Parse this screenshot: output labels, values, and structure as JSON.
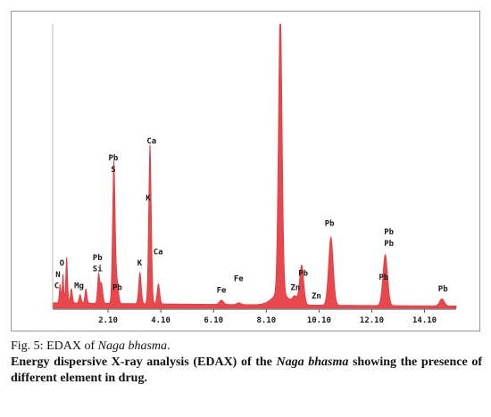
{
  "caption": {
    "fig_label": "Fig. 5: EDAX of ",
    "fig_italic": "Naga bhasma",
    "fig_end": ".",
    "desc_before": "Energy dispersive X-ray analysis (EDAX) of the ",
    "desc_italic": "Naga bhasma",
    "desc_after": " showing the presence of different element in drug."
  },
  "chart_data": {
    "type": "line",
    "title": "",
    "xlabel": "",
    "ylabel": "",
    "xlim": [
      0,
      15.3
    ],
    "ylim": [
      0,
      100
    ],
    "x_ticks": [
      2.1,
      4.1,
      6.1,
      8.1,
      10.1,
      12.1,
      14.1
    ],
    "x_tick_labels": [
      "2.10",
      "4.10",
      "6.10",
      "8.10",
      "10.10",
      "12.10",
      "14.10"
    ],
    "series_color": "#e8474c",
    "baseline": 2,
    "peaks": [
      {
        "x": 0.28,
        "y": 6.5,
        "w": 0.03
      },
      {
        "x": 0.39,
        "y": 10,
        "w": 0.03
      },
      {
        "x": 0.53,
        "y": 16,
        "w": 0.035
      },
      {
        "x": 0.71,
        "y": 5,
        "w": 0.04
      },
      {
        "x": 1.04,
        "y": 3,
        "w": 0.04
      },
      {
        "x": 1.26,
        "y": 5,
        "w": 0.04
      },
      {
        "x": 1.74,
        "y": 10,
        "w": 0.04
      },
      {
        "x": 1.85,
        "y": 7,
        "w": 0.05
      },
      {
        "x": 2.32,
        "y": 50,
        "w": 0.05
      },
      {
        "x": 2.45,
        "y": 7,
        "w": 0.05
      },
      {
        "x": 3.31,
        "y": 11,
        "w": 0.05
      },
      {
        "x": 3.69,
        "y": 56,
        "w": 0.05
      },
      {
        "x": 4.01,
        "y": 7,
        "w": 0.05
      },
      {
        "x": 6.4,
        "y": 1.5,
        "w": 0.08
      },
      {
        "x": 7.06,
        "y": 0.6,
        "w": 0.08
      },
      {
        "x": 8.63,
        "y": 100,
        "w": 0.07
      },
      {
        "x": 8.63,
        "y": 4,
        "w": 0.3
      },
      {
        "x": 9.18,
        "y": 2.5,
        "w": 0.08
      },
      {
        "x": 9.44,
        "y": 14,
        "w": 0.08
      },
      {
        "x": 10.55,
        "y": 24,
        "w": 0.09
      },
      {
        "x": 12.61,
        "y": 18,
        "w": 0.09
      },
      {
        "x": 14.76,
        "y": 2.5,
        "w": 0.09
      }
    ],
    "peak_labels": [
      {
        "text": "C",
        "x": 0.15,
        "y": 7
      },
      {
        "text": "N",
        "x": 0.2,
        "y": 11
      },
      {
        "text": "O",
        "x": 0.35,
        "y": 15
      },
      {
        "text": "Mg",
        "x": 1.0,
        "y": 7
      },
      {
        "text": "Pb",
        "x": 1.7,
        "y": 17
      },
      {
        "text": "Si",
        "x": 1.7,
        "y": 13
      },
      {
        "text": "Pb",
        "x": 2.45,
        "y": 6.5
      },
      {
        "text": "Pb",
        "x": 2.3,
        "y": 52
      },
      {
        "text": "S",
        "x": 2.3,
        "y": 48
      },
      {
        "text": "K",
        "x": 3.3,
        "y": 15
      },
      {
        "text": "K",
        "x": 3.62,
        "y": 38
      },
      {
        "text": "Ca",
        "x": 3.75,
        "y": 58
      },
      {
        "text": "Ca",
        "x": 4.0,
        "y": 19
      },
      {
        "text": "Fe",
        "x": 6.4,
        "y": 5.5
      },
      {
        "text": "Fe",
        "x": 7.05,
        "y": 9.5
      },
      {
        "text": "Zn",
        "x": 9.2,
        "y": 6.5
      },
      {
        "text": "Pb",
        "x": 9.5,
        "y": 11.5
      },
      {
        "text": "Zn",
        "x": 10.0,
        "y": 3.5
      },
      {
        "text": "Pb",
        "x": 10.5,
        "y": 29
      },
      {
        "text": "Pb",
        "x": 12.75,
        "y": 26
      },
      {
        "text": "Pb",
        "x": 12.75,
        "y": 22
      },
      {
        "text": "Pb",
        "x": 12.55,
        "y": 10
      },
      {
        "text": "Pb",
        "x": 14.8,
        "y": 6
      }
    ]
  }
}
